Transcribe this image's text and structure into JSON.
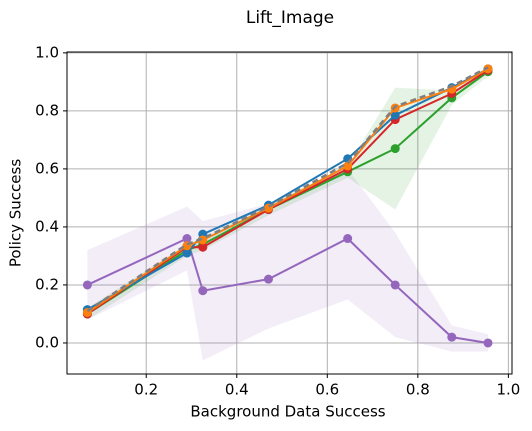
{
  "chart_data": {
    "type": "line",
    "title": "Lift_Image",
    "x_label": "Background Data Success",
    "y_label": "Policy Success",
    "x": [
      0.07,
      0.29,
      0.325,
      0.47,
      0.645,
      0.75,
      0.875,
      0.955
    ],
    "xlim": [
      0.025,
      1.008
    ],
    "ylim": [
      -0.107,
      1.003
    ],
    "xticks": [
      0.2,
      0.4,
      0.6,
      0.8,
      {
        "value": 1.0,
        "label": "1.0"
      }
    ],
    "yticks": [
      {
        "value": 0,
        "label": "0.0"
      },
      0.2,
      0.4,
      0.6,
      0.8,
      {
        "value": 1.0,
        "label": "1.0"
      }
    ],
    "grid": true,
    "series": [
      {
        "color": "#9467bd",
        "values": [
          0.2,
          0.36,
          0.18,
          0.22,
          0.36,
          0.2,
          0.02,
          0.0
        ],
        "upper": [
          0.32,
          0.47,
          0.42,
          0.48,
          0.6,
          0.38,
          0.06,
          0.03
        ],
        "lower": [
          0.08,
          0.25,
          -0.06,
          0.05,
          0.15,
          0.02,
          -0.03,
          -0.03
        ]
      },
      {
        "color": "#2ca02c",
        "values": [
          0.1,
          0.32,
          0.34,
          0.46,
          0.59,
          0.67,
          0.845,
          0.935
        ],
        "upper": [
          0.12,
          0.34,
          0.36,
          0.48,
          0.61,
          0.88,
          0.87,
          0.95
        ],
        "lower": [
          0.08,
          0.3,
          0.32,
          0.44,
          0.57,
          0.46,
          0.82,
          0.92
        ]
      },
      {
        "color": "#d62728",
        "values": [
          0.1,
          0.33,
          0.33,
          0.46,
          0.6,
          0.77,
          0.86,
          0.94
        ]
      },
      {
        "color": "#1f77b4",
        "values": [
          0.115,
          0.31,
          0.375,
          0.475,
          0.635,
          0.785,
          0.88,
          0.945
        ]
      },
      {
        "color": "#ff7f0e",
        "values": [
          0.105,
          0.335,
          0.355,
          0.465,
          0.61,
          0.81,
          0.875,
          0.945
        ]
      },
      {
        "color": "#7f7f7f",
        "dashed": true,
        "values": [
          0.11,
          0.34,
          0.36,
          0.47,
          0.62,
          0.815,
          0.885,
          0.95
        ]
      }
    ]
  }
}
